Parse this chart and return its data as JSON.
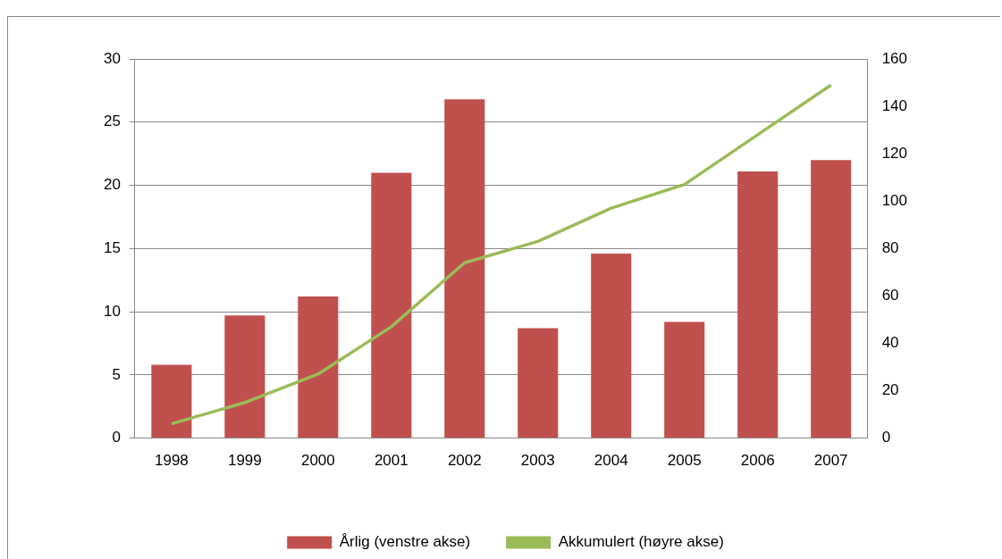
{
  "chart_data": {
    "type": "bar",
    "categories": [
      "1998",
      "1999",
      "2000",
      "2001",
      "2002",
      "2003",
      "2004",
      "2005",
      "2006",
      "2007"
    ],
    "series": [
      {
        "name": "Årlig (venstre akse)",
        "color": "#c0504d",
        "values": [
          5.8,
          9.7,
          11.2,
          21.0,
          26.8,
          8.7,
          14.6,
          9.2,
          21.1,
          22.0
        ]
      },
      {
        "name": "Akkumulert (høyre akse)",
        "type": "line",
        "axis": "y2",
        "color": "#9bbb59",
        "values": [
          6,
          15,
          27,
          47,
          74,
          83,
          97,
          107,
          128,
          149
        ]
      }
    ],
    "ylim": [
      0,
      30
    ],
    "yticks": [
      0,
      5,
      10,
      15,
      20,
      25,
      30
    ],
    "y2lim": [
      0,
      160
    ],
    "y2ticks": [
      0,
      20,
      40,
      60,
      80,
      100,
      120,
      140,
      160
    ],
    "grid": "y",
    "legend": "bottom",
    "marker": "none"
  }
}
